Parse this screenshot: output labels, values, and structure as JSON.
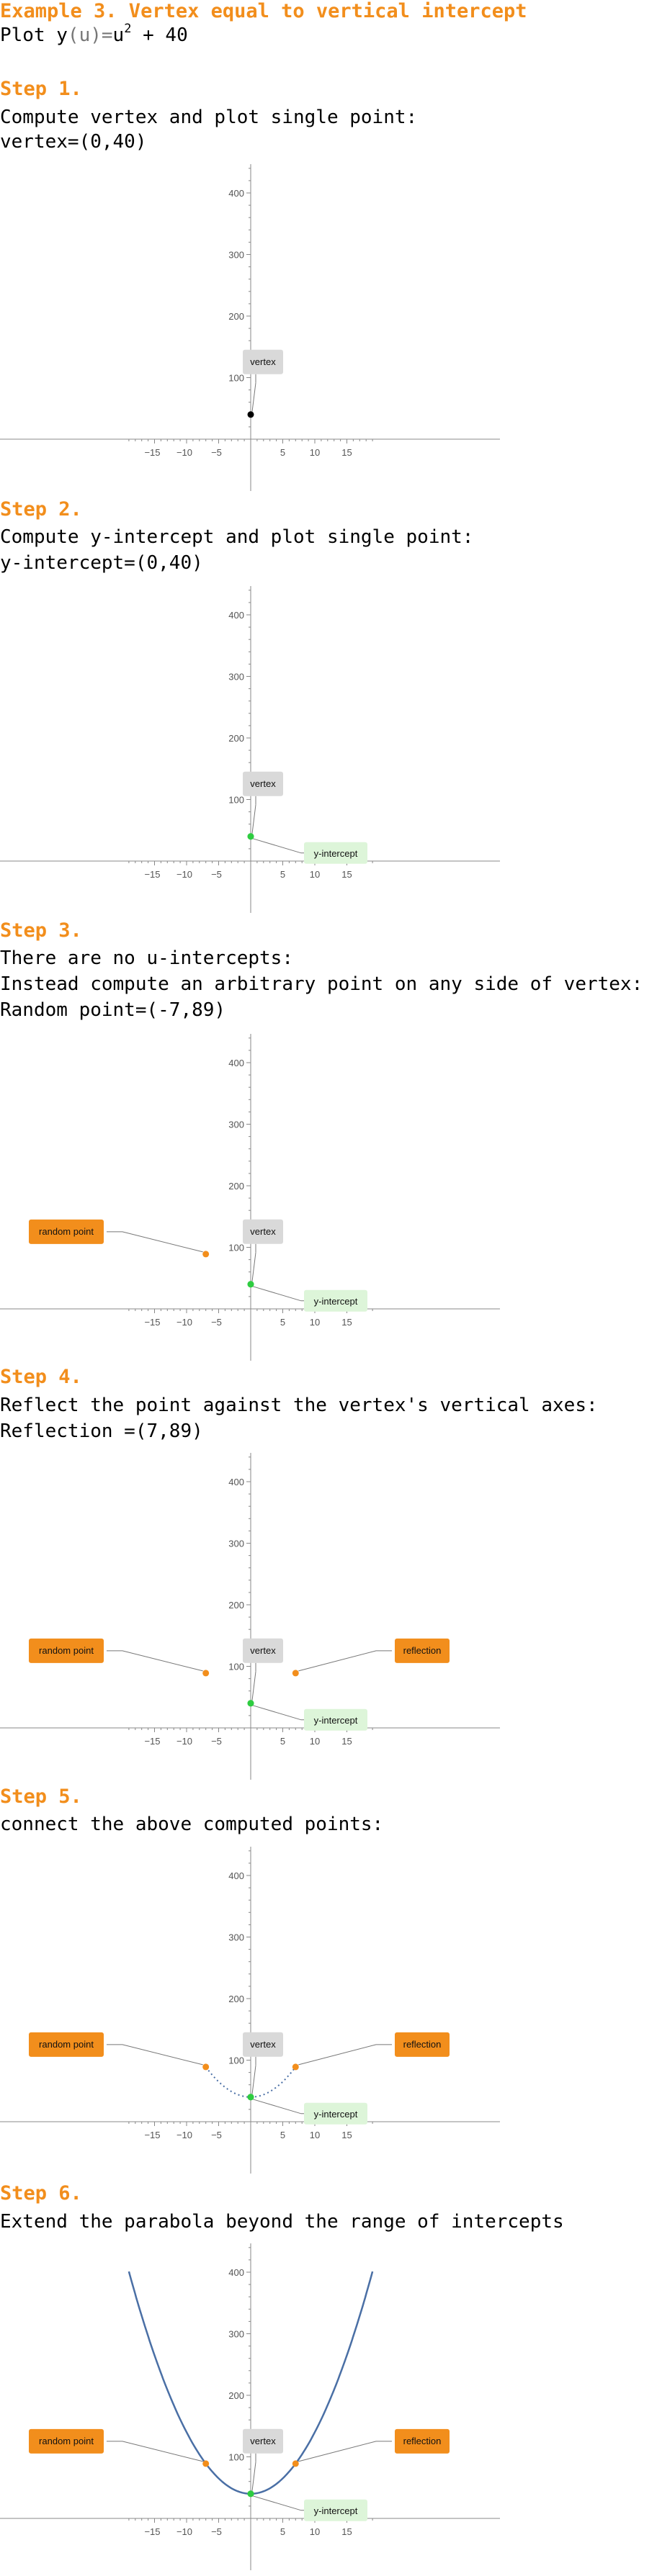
{
  "title": "Example 3. Vertex equal to vertical intercept",
  "plot_prefix": "Plot y",
  "plot_var": "(u)",
  "plot_eq": "=",
  "plot_u": "u",
  "plot_exp": "2",
  "plot_rest": " + 40",
  "steps": [
    {
      "label": "Step 1.",
      "lines": [
        "Compute vertex and plot single point:",
        "vertex=(0,40)"
      ]
    },
    {
      "label": "Step 2.",
      "lines": [
        "Compute y-intercept and plot single point:",
        "y-intercept=(0,40)"
      ]
    },
    {
      "label": "Step 3.",
      "lines": [
        "There are no u-intercepts:",
        "Instead compute an arbitrary point on any side of vertex:",
        "Random point=(-7,89)"
      ]
    },
    {
      "label": "Step 4.",
      "lines": [
        "Reflect the point against the vertex's vertical axes:",
        "Reflection =(7,89)"
      ]
    },
    {
      "label": "Step 5.",
      "lines": [
        "connect the above computed points:"
      ]
    },
    {
      "label": "Step 6.",
      "lines": [
        "Extend the parabola beyond the range of intercepts"
      ]
    }
  ],
  "labels": {
    "vertex": "vertex",
    "y_intercept": "y-intercept",
    "random_point": "random point",
    "reflection": "reflection"
  },
  "colors": {
    "accent": "#f28e1c",
    "vertex_black": "#000000",
    "green_point": "#2ecc40",
    "orange_point": "#f28e1c",
    "curve": "#4a6fa5",
    "vertex_box": "#d9d9d9",
    "intercept_box": "#ddf5d9"
  },
  "chart_data": [
    {
      "type": "scatter",
      "xlim": [
        -19,
        19
      ],
      "ylim": [
        -20,
        440
      ],
      "x_ticks": [
        -15,
        -10,
        -5,
        5,
        10,
        15
      ],
      "y_ticks": [
        100,
        200,
        300,
        400
      ],
      "points": [
        {
          "x": 0,
          "y": 40,
          "label": "vertex"
        }
      ]
    },
    {
      "type": "scatter",
      "xlim": [
        -19,
        19
      ],
      "ylim": [
        -20,
        440
      ],
      "x_ticks": [
        -15,
        -10,
        -5,
        5,
        10,
        15
      ],
      "y_ticks": [
        100,
        200,
        300,
        400
      ],
      "points": [
        {
          "x": 0,
          "y": 40,
          "label": "vertex"
        },
        {
          "x": 0,
          "y": 40,
          "label": "y-intercept"
        }
      ]
    },
    {
      "type": "scatter",
      "xlim": [
        -19,
        19
      ],
      "ylim": [
        -20,
        440
      ],
      "x_ticks": [
        -15,
        -10,
        -5,
        5,
        10,
        15
      ],
      "y_ticks": [
        100,
        200,
        300,
        400
      ],
      "points": [
        {
          "x": 0,
          "y": 40,
          "label": "vertex"
        },
        {
          "x": 0,
          "y": 40,
          "label": "y-intercept"
        },
        {
          "x": -7,
          "y": 89,
          "label": "random point"
        }
      ]
    },
    {
      "type": "scatter",
      "xlim": [
        -19,
        19
      ],
      "ylim": [
        -20,
        440
      ],
      "x_ticks": [
        -15,
        -10,
        -5,
        5,
        10,
        15
      ],
      "y_ticks": [
        100,
        200,
        300,
        400
      ],
      "points": [
        {
          "x": 0,
          "y": 40,
          "label": "vertex"
        },
        {
          "x": 0,
          "y": 40,
          "label": "y-intercept"
        },
        {
          "x": -7,
          "y": 89,
          "label": "random point"
        },
        {
          "x": 7,
          "y": 89,
          "label": "reflection"
        }
      ]
    },
    {
      "type": "line",
      "xlim": [
        -19,
        19
      ],
      "ylim": [
        -20,
        440
      ],
      "x_ticks": [
        -15,
        -10,
        -5,
        5,
        10,
        15
      ],
      "y_ticks": [
        100,
        200,
        300,
        400
      ],
      "points": [
        {
          "x": 0,
          "y": 40,
          "label": "vertex"
        },
        {
          "x": 0,
          "y": 40,
          "label": "y-intercept"
        },
        {
          "x": -7,
          "y": 89,
          "label": "random point"
        },
        {
          "x": 7,
          "y": 89,
          "label": "reflection"
        }
      ],
      "curve": {
        "function": "u^2+40",
        "x_range": [
          -7,
          7
        ],
        "style": "dotted"
      }
    },
    {
      "type": "line",
      "xlim": [
        -19,
        19
      ],
      "ylim": [
        -20,
        440
      ],
      "x_ticks": [
        -15,
        -10,
        -5,
        5,
        10,
        15
      ],
      "y_ticks": [
        100,
        200,
        300,
        400
      ],
      "points": [
        {
          "x": 0,
          "y": 40,
          "label": "vertex"
        },
        {
          "x": 0,
          "y": 40,
          "label": "y-intercept"
        },
        {
          "x": -7,
          "y": 89,
          "label": "random point"
        },
        {
          "x": 7,
          "y": 89,
          "label": "reflection"
        }
      ],
      "curve": {
        "function": "u^2+40",
        "x_range": [
          -19,
          19
        ],
        "style": "solid"
      }
    }
  ]
}
